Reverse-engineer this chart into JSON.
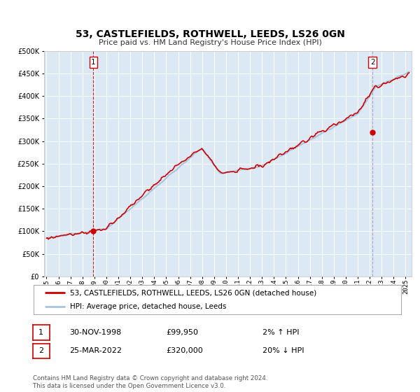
{
  "title": "53, CASTLEFIELDS, ROTHWELL, LEEDS, LS26 0GN",
  "subtitle": "Price paid vs. HM Land Registry's House Price Index (HPI)",
  "legend_line1": "53, CASTLEFIELDS, ROTHWELL, LEEDS, LS26 0GN (detached house)",
  "legend_line2": "HPI: Average price, detached house, Leeds",
  "annotation1_date": "30-NOV-1998",
  "annotation1_price": "£99,950",
  "annotation1_hpi": "2% ↑ HPI",
  "annotation2_date": "25-MAR-2022",
  "annotation2_price": "£320,000",
  "annotation2_hpi": "20% ↓ HPI",
  "footnote": "Contains HM Land Registry data © Crown copyright and database right 2024.\nThis data is licensed under the Open Government Licence v3.0.",
  "hpi_color": "#a8c4e0",
  "price_color": "#cc0000",
  "marker_color": "#cc0000",
  "plot_bg_color": "#dce9f5",
  "vline1_color": "#cc0000",
  "vline2_color": "#9999bb",
  "ylim": [
    0,
    500000
  ],
  "xlim_start": 1994.8,
  "xlim_end": 2025.5,
  "yticks": [
    0,
    50000,
    100000,
    150000,
    200000,
    250000,
    300000,
    350000,
    400000,
    450000,
    500000
  ],
  "xticks": [
    1995,
    1996,
    1997,
    1998,
    1999,
    2000,
    2001,
    2002,
    2003,
    2004,
    2005,
    2006,
    2007,
    2008,
    2009,
    2010,
    2011,
    2012,
    2013,
    2014,
    2015,
    2016,
    2017,
    2018,
    2019,
    2020,
    2021,
    2022,
    2023,
    2024,
    2025
  ],
  "point1_x": 1998.92,
  "point1_y": 99950,
  "point2_x": 2022.23,
  "point2_y": 320000
}
